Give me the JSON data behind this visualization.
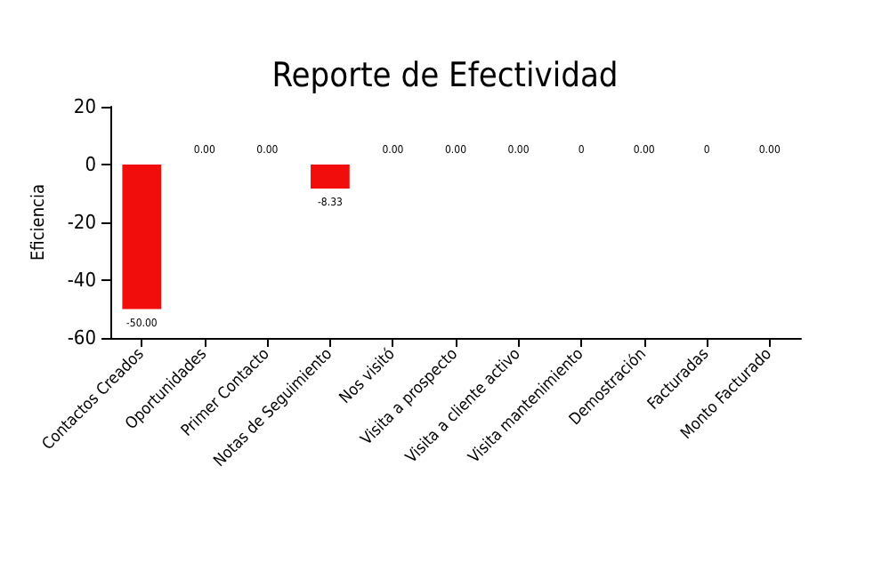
{
  "chart_data": {
    "type": "bar",
    "title": "Reporte de Efectividad",
    "ylabel": "Eficiencia",
    "categories": [
      "Contactos Creados",
      "Oportunidades",
      "Primer Contacto",
      "Notas de Seguimiento",
      "Nos visitó",
      "Visita a prospecto",
      "Visita a cliente activo",
      "Visita mantenimiento",
      "Demostración",
      "Facturadas",
      "Monto Facturado"
    ],
    "values": [
      -50,
      0,
      0,
      -8.33,
      0,
      0,
      0,
      0,
      0,
      0,
      0
    ],
    "value_labels": [
      "-50.00",
      "0.00",
      "0.00",
      "-8.33",
      "0.00",
      "0.00",
      "0.00",
      "0",
      "0.00",
      "0",
      "0.00"
    ],
    "color": "#f20d0d",
    "ylim": [
      -60,
      20
    ],
    "yticks": [
      -60,
      -40,
      -20,
      0,
      20
    ],
    "grid": false
  }
}
